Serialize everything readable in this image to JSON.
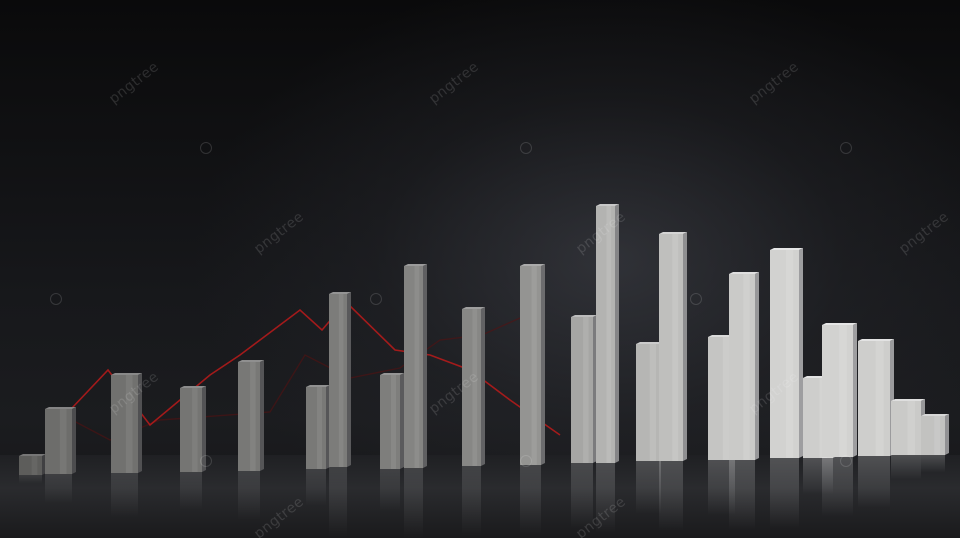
{
  "scene": {
    "description_colors": {
      "background": "#0b0b0d",
      "bar_light": "#e9e9e6",
      "bar_dark": "#55565a",
      "trend_line": "#b31b1b"
    }
  },
  "watermark": {
    "text": "pngtree"
  }
}
